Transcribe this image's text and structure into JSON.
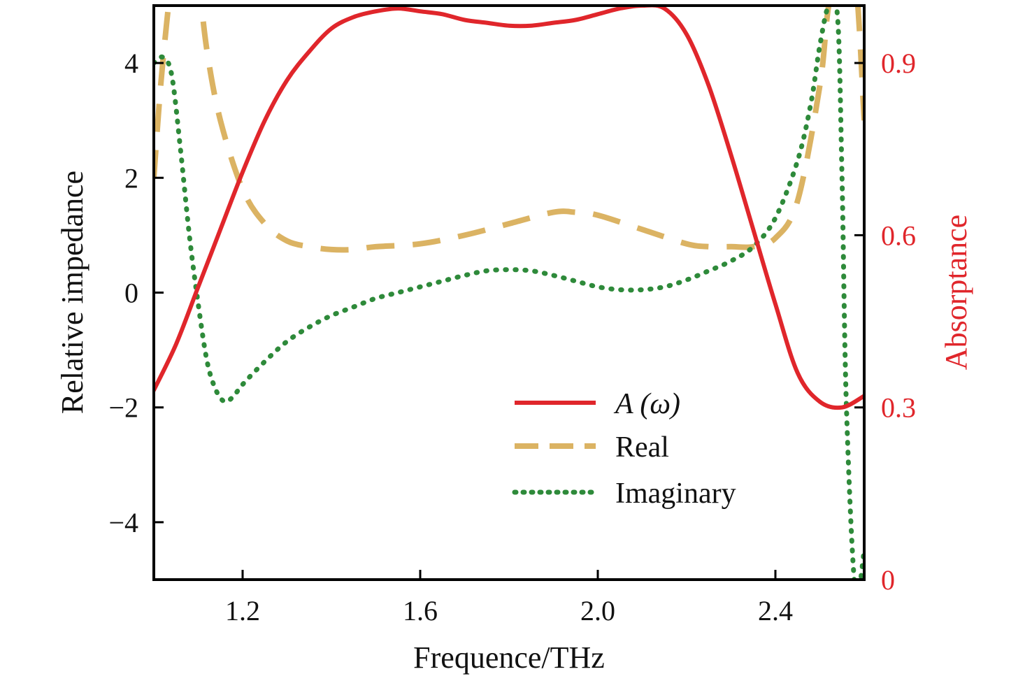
{
  "chart_data": {
    "type": "line",
    "title": "",
    "xlabel": "Frequence/THz",
    "ylabel_left": "Relative impedance",
    "ylabel_right": "Absorptance",
    "xlim": [
      1.0,
      2.6
    ],
    "ylim_left": [
      -5,
      5
    ],
    "ylim_right": [
      0,
      1.0
    ],
    "x_ticks": [
      1.2,
      1.6,
      2.0,
      2.4
    ],
    "x_tick_labels": [
      "1.2",
      "1.6",
      "2.0",
      "2.4"
    ],
    "y_left_ticks": [
      -4,
      -2,
      0,
      2,
      4
    ],
    "y_left_tick_labels": [
      "−4",
      "−2",
      "0",
      "2",
      "4"
    ],
    "y_right_ticks": [
      0,
      0.3,
      0.6,
      0.9
    ],
    "y_right_tick_labels": [
      "0",
      "0.3",
      "0.6",
      "0.9"
    ],
    "grid": false,
    "legend_position": "lower-right",
    "colors": {
      "absorptance": "#e0262b",
      "real": "#dbb363",
      "imaginary": "#2e8a3a",
      "axis": "#000000",
      "right_axis_text": "#e0262b"
    },
    "series": [
      {
        "name": "A (ω)",
        "axis": "right",
        "style": "solid",
        "x": [
          1.0,
          1.05,
          1.1,
          1.15,
          1.2,
          1.25,
          1.3,
          1.35,
          1.4,
          1.45,
          1.5,
          1.55,
          1.6,
          1.65,
          1.7,
          1.75,
          1.8,
          1.85,
          1.9,
          1.95,
          2.0,
          2.05,
          2.1,
          2.15,
          2.2,
          2.25,
          2.3,
          2.35,
          2.4,
          2.45,
          2.5,
          2.55,
          2.6
        ],
        "y": [
          0.33,
          0.41,
          0.51,
          0.61,
          0.71,
          0.8,
          0.87,
          0.92,
          0.96,
          0.98,
          0.99,
          0.995,
          0.99,
          0.985,
          0.975,
          0.97,
          0.965,
          0.965,
          0.97,
          0.975,
          0.985,
          0.995,
          1.0,
          0.995,
          0.95,
          0.86,
          0.74,
          0.61,
          0.48,
          0.36,
          0.31,
          0.3,
          0.32
        ]
      },
      {
        "name": "Real",
        "axis": "left",
        "style": "dashed",
        "x": [
          1.0,
          1.02,
          1.05,
          1.08,
          1.1,
          1.12,
          1.15,
          1.2,
          1.25,
          1.3,
          1.35,
          1.4,
          1.45,
          1.5,
          1.6,
          1.7,
          1.8,
          1.9,
          1.95,
          2.0,
          2.1,
          2.2,
          2.25,
          2.3,
          2.35,
          2.4,
          2.45,
          2.5,
          2.52,
          2.55,
          2.58,
          2.6
        ],
        "y": [
          2.0,
          4.0,
          6.0,
          6.5,
          5.5,
          4.2,
          3.0,
          1.8,
          1.2,
          0.9,
          0.8,
          0.75,
          0.75,
          0.8,
          0.85,
          1.0,
          1.2,
          1.4,
          1.4,
          1.35,
          1.1,
          0.85,
          0.8,
          0.8,
          0.8,
          0.95,
          1.6,
          3.6,
          5.0,
          6.0,
          5.5,
          3.0
        ]
      },
      {
        "name": "Imaginary",
        "axis": "left",
        "style": "dotted",
        "x": [
          1.0,
          1.02,
          1.04,
          1.06,
          1.08,
          1.1,
          1.12,
          1.14,
          1.16,
          1.18,
          1.2,
          1.25,
          1.3,
          1.35,
          1.4,
          1.45,
          1.5,
          1.55,
          1.6,
          1.65,
          1.7,
          1.75,
          1.8,
          1.85,
          1.9,
          1.95,
          2.0,
          2.05,
          2.1,
          2.15,
          2.2,
          2.25,
          2.3,
          2.35,
          2.4,
          2.45,
          2.48,
          2.5,
          2.52,
          2.54,
          2.55,
          2.56,
          2.58,
          2.6
        ],
        "y": [
          4.0,
          4.1,
          3.8,
          2.5,
          1.0,
          -0.2,
          -1.2,
          -1.7,
          -1.9,
          -1.8,
          -1.6,
          -1.2,
          -0.85,
          -0.6,
          -0.4,
          -0.25,
          -0.1,
          0.0,
          0.1,
          0.2,
          0.3,
          0.38,
          0.4,
          0.38,
          0.3,
          0.2,
          0.1,
          0.05,
          0.05,
          0.1,
          0.22,
          0.38,
          0.55,
          0.8,
          1.3,
          2.3,
          3.3,
          4.3,
          5.0,
          4.8,
          2.0,
          -2.0,
          -5.2,
          -4.5
        ]
      }
    ]
  }
}
